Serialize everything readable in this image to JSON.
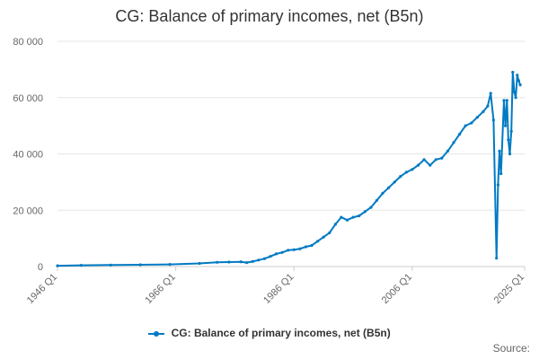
{
  "title": "CG: Balance of primary incomes, net (B5n)",
  "legend_label": "CG: Balance of primary incomes, net (B5n)",
  "source_label": "Source:",
  "colors": {
    "series": "#007ac3",
    "grid": "#e6e6e6",
    "axis": "#cccccc"
  },
  "chart_data": {
    "type": "line",
    "title": "CG: Balance of primary incomes, net (B5n)",
    "xlabel": "",
    "ylabel": "",
    "ylim": [
      0,
      80000
    ],
    "yticks": [
      0,
      20000,
      40000,
      60000,
      80000
    ],
    "ytick_labels": [
      "0",
      "20 000",
      "40 000",
      "60 000",
      "80 000"
    ],
    "xrange": [
      "1946 Q1",
      "2025 Q1"
    ],
    "xticks": [
      "1946 Q1",
      "1966 Q1",
      "1986 Q1",
      "2006 Q1",
      "2025 Q1"
    ],
    "grid": "horizontal",
    "legend": "bottom",
    "series": [
      {
        "name": "CG: Balance of primary incomes, net (B5n)",
        "points": [
          [
            "1946 Q1",
            300
          ],
          [
            "1950 Q1",
            450
          ],
          [
            "1955 Q1",
            550
          ],
          [
            "1960 Q1",
            650
          ],
          [
            "1965 Q1",
            750
          ],
          [
            "1970 Q1",
            1100
          ],
          [
            "1973 Q1",
            1500
          ],
          [
            "1975 Q1",
            1600
          ],
          [
            "1977 Q1",
            1700
          ],
          [
            "1978 Q1",
            1400
          ],
          [
            "1979 Q1",
            1800
          ],
          [
            "1980 Q1",
            2300
          ],
          [
            "1981 Q1",
            2800
          ],
          [
            "1982 Q1",
            3600
          ],
          [
            "1983 Q1",
            4500
          ],
          [
            "1984 Q1",
            5000
          ],
          [
            "1985 Q1",
            5800
          ],
          [
            "1986 Q1",
            6000
          ],
          [
            "1987 Q1",
            6300
          ],
          [
            "1988 Q1",
            7000
          ],
          [
            "1989 Q1",
            7500
          ],
          [
            "1990 Q1",
            9000
          ],
          [
            "1991 Q1",
            10500
          ],
          [
            "1992 Q1",
            12000
          ],
          [
            "1993 Q1",
            15000
          ],
          [
            "1994 Q1",
            17500
          ],
          [
            "1995 Q1",
            16500
          ],
          [
            "1996 Q1",
            17500
          ],
          [
            "1997 Q1",
            18000
          ],
          [
            "1998 Q1",
            19500
          ],
          [
            "1999 Q1",
            21000
          ],
          [
            "2000 Q1",
            23500
          ],
          [
            "2001 Q1",
            26000
          ],
          [
            "2002 Q1",
            28000
          ],
          [
            "2003 Q1",
            30000
          ],
          [
            "2004 Q1",
            32000
          ],
          [
            "2005 Q1",
            33500
          ],
          [
            "2006 Q1",
            34500
          ],
          [
            "2007 Q1",
            36000
          ],
          [
            "2008 Q1",
            38000
          ],
          [
            "2009 Q1",
            36000
          ],
          [
            "2010 Q1",
            38000
          ],
          [
            "2011 Q1",
            38500
          ],
          [
            "2012 Q1",
            41000
          ],
          [
            "2013 Q1",
            44000
          ],
          [
            "2014 Q1",
            47000
          ],
          [
            "2015 Q1",
            50000
          ],
          [
            "2016 Q1",
            51000
          ],
          [
            "2017 Q1",
            53000
          ],
          [
            "2018 Q1",
            55000
          ],
          [
            "2018 Q4",
            57000
          ],
          [
            "2019 Q2",
            61500
          ],
          [
            "2019 Q4",
            52000
          ],
          [
            "2020 Q2",
            3000
          ],
          [
            "2020 Q3",
            29000
          ],
          [
            "2020 Q4",
            41000
          ],
          [
            "2021 Q1",
            33000
          ],
          [
            "2021 Q3",
            59000
          ],
          [
            "2021 Q4",
            50000
          ],
          [
            "2022 Q1",
            59000
          ],
          [
            "2022 Q2",
            45000
          ],
          [
            "2022 Q3",
            40000
          ],
          [
            "2022 Q4",
            48000
          ],
          [
            "2023 Q1",
            69000
          ],
          [
            "2023 Q2",
            62000
          ],
          [
            "2023 Q3",
            60000
          ],
          [
            "2023 Q4",
            68000
          ],
          [
            "2024 Q1",
            66000
          ],
          [
            "2024 Q2",
            64500
          ]
        ]
      }
    ]
  }
}
